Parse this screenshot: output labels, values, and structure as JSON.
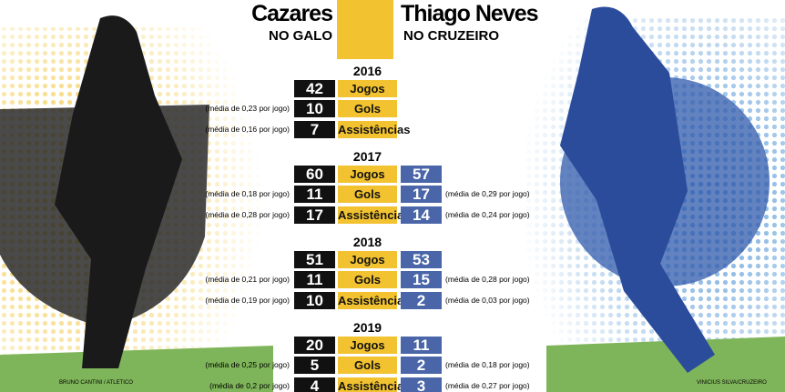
{
  "header": {
    "left_name": "Cazares",
    "left_subtitle": "NO GALO",
    "right_name": "Thiago Neves",
    "right_subtitle": "NO CRUZEIRO"
  },
  "seasons": [
    {
      "year": "2016",
      "rows": [
        {
          "label": "Jogos",
          "left": "42"
        },
        {
          "label": "Gols",
          "left": "10",
          "left_note": "(média de 0,23 por jogo)"
        },
        {
          "label": "Assistências",
          "left": "7",
          "left_note": "(média de 0,16 por jogo)"
        }
      ]
    },
    {
      "year": "2017",
      "rows": [
        {
          "label": "Jogos",
          "left": "60",
          "right": "57"
        },
        {
          "label": "Gols",
          "left": "11",
          "left_note": "(média de 0,18 por jogo)",
          "right": "17",
          "right_note": "(média de 0,29 por jogo)"
        },
        {
          "label": "Assistências",
          "left": "17",
          "left_note": "(média de 0,28 por jogo)",
          "right": "14",
          "right_note": "(média de 0,24 por jogo)"
        }
      ]
    },
    {
      "year": "2018",
      "rows": [
        {
          "label": "Jogos",
          "left": "51",
          "right": "53"
        },
        {
          "label": "Gols",
          "left": "11",
          "left_note": "(média de 0,21 por jogo)",
          "right": "15",
          "right_note": "(média de 0,28 por jogo)"
        },
        {
          "label": "Assistências",
          "left": "10",
          "left_note": "(média de 0,19 por jogo)",
          "right": "2",
          "right_note": "(média de 0,03 por jogo)"
        }
      ]
    },
    {
      "year": "2019",
      "rows": [
        {
          "label": "Jogos",
          "left": "20",
          "right": "11"
        },
        {
          "label": "Gols",
          "left": "5",
          "left_note": "(média de 0,25 por jogo)",
          "right": "2",
          "right_note": "(média de 0,18 por jogo)"
        },
        {
          "label": "Assistências",
          "left": "4",
          "left_note": "(média de 0,2 por jogo)",
          "right": "3",
          "right_note": "(média de 0,27 por jogo)"
        }
      ]
    }
  ],
  "credits": {
    "left": "BRUNO CANTINI / ATLETICO",
    "right": "VINICIUS SILVA/CRUZEIRO"
  }
}
